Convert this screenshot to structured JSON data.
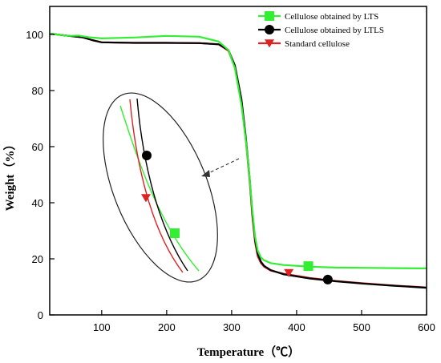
{
  "chart_data": {
    "type": "line",
    "title": "",
    "xlabel": "Temperature（℃）",
    "ylabel": "Weight（%）",
    "xlim": [
      20,
      600
    ],
    "ylim": [
      0,
      110
    ],
    "xticks": [
      100,
      200,
      300,
      400,
      500,
      600
    ],
    "yticks": [
      0,
      20,
      40,
      60,
      80,
      100
    ],
    "grid": false,
    "legend_position": "top-right",
    "series": [
      {
        "name": "Cellulose obtained by LTS",
        "color": "#33ee33",
        "marker": "square",
        "x": [
          20,
          50,
          65,
          80,
          100,
          150,
          200,
          250,
          280,
          295,
          305,
          315,
          322,
          328,
          332,
          336,
          340,
          345,
          350,
          360,
          380,
          420,
          460,
          500,
          550,
          600
        ],
        "y": [
          100.3,
          99.5,
          99.6,
          99.0,
          98.6,
          98.9,
          99.5,
          99.2,
          97.5,
          94.5,
          88,
          75,
          62,
          48,
          37,
          28,
          23,
          20.5,
          19.5,
          18.5,
          17.8,
          17.2,
          16.9,
          16.8,
          16.7,
          16.6
        ],
        "marker_points": [
          {
            "x": 418,
            "y": 17.4
          }
        ]
      },
      {
        "name": "Cellulose obtained by LTLS",
        "color": "#000000",
        "marker": "circle",
        "x": [
          20,
          50,
          70,
          85,
          100,
          150,
          200,
          250,
          280,
          295,
          305,
          315,
          322,
          328,
          332,
          336,
          340,
          345,
          350,
          360,
          380,
          420,
          460,
          500,
          550,
          600
        ],
        "y": [
          100.3,
          99.5,
          99.0,
          98.0,
          97.2,
          97.0,
          97.0,
          96.9,
          96.5,
          94.5,
          89,
          77,
          63,
          48,
          36,
          27,
          22,
          19,
          17.5,
          16,
          14.5,
          13,
          12,
          11.2,
          10.4,
          9.7
        ],
        "marker_points": [
          {
            "x": 448,
            "y": 12.6
          }
        ]
      },
      {
        "name": "Standard cellulose",
        "color": "#dd2222",
        "marker": "triangle-down",
        "x": [
          20,
          50,
          70,
          85,
          100,
          150,
          200,
          250,
          280,
          295,
          305,
          315,
          322,
          328,
          332,
          336,
          340,
          345,
          350,
          360,
          380,
          420,
          460,
          500,
          550,
          600
        ],
        "y": [
          100.3,
          99.5,
          99.0,
          98.0,
          97.2,
          97.0,
          97.0,
          96.9,
          96.5,
          94.2,
          88.5,
          76,
          62,
          47,
          35,
          26,
          21,
          18.5,
          17.2,
          15.8,
          14.7,
          13.2,
          12.1,
          11.3,
          10.5,
          9.8
        ],
        "marker_points": [
          {
            "x": 388,
            "y": 15.0
          }
        ]
      }
    ],
    "inset": {
      "note": "zoomed view of the three curves in the 320–345 ℃ transition region",
      "markers": [
        "circle",
        "triangle-down",
        "square"
      ]
    }
  }
}
